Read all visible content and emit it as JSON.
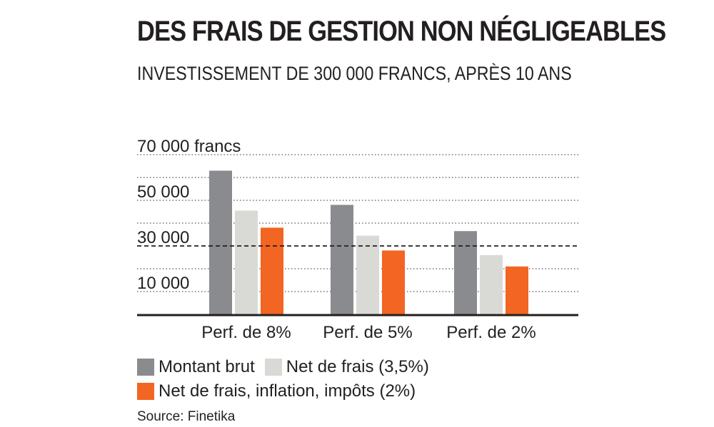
{
  "header": {
    "title": "DES FRAIS DE GESTION NON NÉGLIGEABLES",
    "subtitle": "INVESTISSEMENT DE 300 000 FRANCS, APRÈS 10 ANS"
  },
  "chart_data": {
    "type": "bar",
    "title": "DES FRAIS DE GESTION NON NÉGLIGEABLES",
    "subtitle": "INVESTISSEMENT DE 300 000 FRANCS, APRÈS 10 ANS",
    "categories": [
      "Perf. de 8%",
      "Perf. de 5%",
      "Perf. de 2%"
    ],
    "series": [
      {
        "name": "Montant brut",
        "color": "#8a8b8e",
        "values": [
          63000,
          48000,
          36500
        ]
      },
      {
        "name": "Net de frais (3,5%)",
        "color": "#d9d9d6",
        "values": [
          45500,
          34500,
          26000
        ]
      },
      {
        "name": "Net de frais, inflation, impôts (2%)",
        "color": "#f26522",
        "values": [
          38000,
          28000,
          21000
        ]
      }
    ],
    "ylim": [
      0,
      70000
    ],
    "yticks": [
      {
        "value": 70000,
        "label": "70 000 francs"
      },
      {
        "value": 50000,
        "label": "50 000"
      },
      {
        "value": 30000,
        "label": "30 000"
      },
      {
        "value": 10000,
        "label": "10 000"
      }
    ],
    "reference_line": {
      "value": 30000,
      "style": "dashed"
    },
    "grid": "dotted",
    "legend_position": "bottom",
    "xlabel": "",
    "ylabel": ""
  },
  "source": "Source: Finetika"
}
